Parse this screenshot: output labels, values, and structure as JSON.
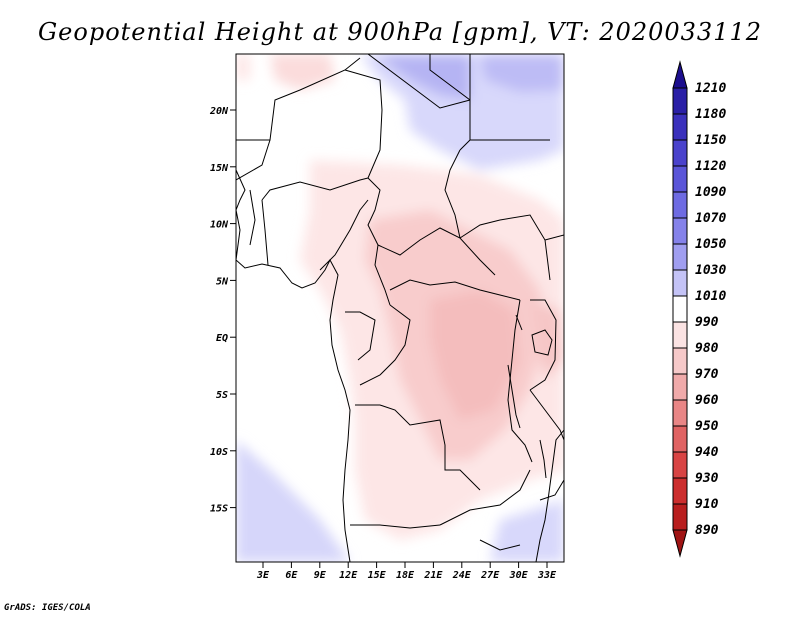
{
  "title": "Geopotential Height at 900hPa [gpm], VT: 2020033112",
  "credit": "GrADS: IGES/COLA",
  "map": {
    "y_axis_labels": [
      "20N",
      "15N",
      "10N",
      "5N",
      "EQ",
      "5S",
      "10S",
      "15S"
    ],
    "x_axis_labels": [
      "3E",
      "6E",
      "9E",
      "12E",
      "15E",
      "18E",
      "21E",
      "24E",
      "27E",
      "30E",
      "33E"
    ]
  },
  "colorbar": {
    "levels": [
      "1210",
      "1180",
      "1150",
      "1120",
      "1090",
      "1070",
      "1050",
      "1030",
      "1010",
      "990",
      "980",
      "970",
      "960",
      "950",
      "940",
      "930",
      "910",
      "890"
    ],
    "colors": [
      "#1c0e8e",
      "#2a1fa6",
      "#3a30bc",
      "#4a42cc",
      "#5a55d8",
      "#6e6be2",
      "#8582ea",
      "#a09ef0",
      "#c4c3f6",
      "#ffffff",
      "#fbe3e3",
      "#f6c9c9",
      "#f0aaaa",
      "#e98686",
      "#e06363",
      "#d84444",
      "#cc2e2e",
      "#b81e1e",
      "#a01414"
    ]
  }
}
